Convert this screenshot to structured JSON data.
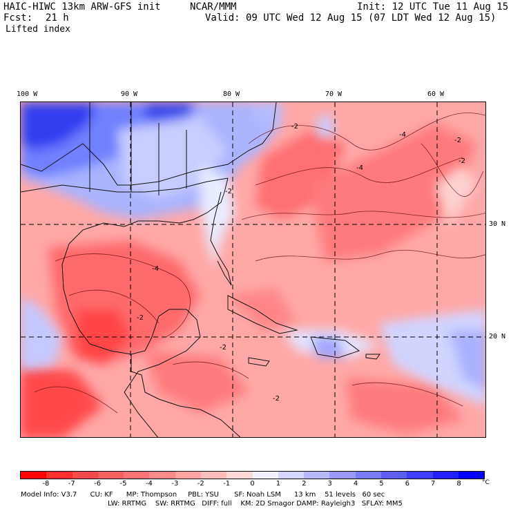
{
  "header": {
    "model_title": "HAIC-HIWC 13km ARW-GFS init",
    "org": "NCAR/MMM",
    "init": "Init: 12 UTC Tue 11 Aug 15",
    "fcst_label": "Fcst:",
    "fcst_value": "21 h",
    "valid": "Valid: 09 UTC Wed 12 Aug 15 (07 LDT Wed 12 Aug 15)",
    "field": "Lifted index"
  },
  "map": {
    "lon_labels": [
      "100 W",
      "90 W",
      "80 W",
      "70 W",
      "60 W"
    ],
    "lat_labels": [
      "30 N",
      "20 N"
    ],
    "contour_labels": [
      "-2",
      "-4",
      "-2",
      "-4",
      "-2",
      "-2",
      "-4",
      "-2",
      "-2",
      "-2"
    ]
  },
  "colorbar": {
    "ticks": [
      "-8",
      "-7",
      "-6",
      "-5",
      "-4",
      "-3",
      "-2",
      "-1",
      "0",
      "1",
      "2",
      "3",
      "4",
      "5",
      "6",
      "7",
      "8"
    ],
    "unit": "°C",
    "colors": [
      "#ff0000",
      "#ff2e2e",
      "#ff4a4a",
      "#ff6161",
      "#ff7575",
      "#ff8a8a",
      "#ffa3a3",
      "#ffbdbd",
      "#ffd6d6",
      "#f2f2ff",
      "#d6d6ff",
      "#b8b8ff",
      "#9999ff",
      "#7a7aff",
      "#5c5cff",
      "#3d3dff",
      "#1f1fff",
      "#0000ff"
    ]
  },
  "model_info": {
    "line1": "Model Info: V3.7      CU: KF      MP: Thompson     PBL: YSU       SF: Noah LSM      13 km    51 levels   60 sec",
    "line2": "LW: RRTMG    SW: RRTMG   DIFF: full    KM: 2D Smagor DAMP: Rayleigh3   SFLAY: MM5"
  }
}
